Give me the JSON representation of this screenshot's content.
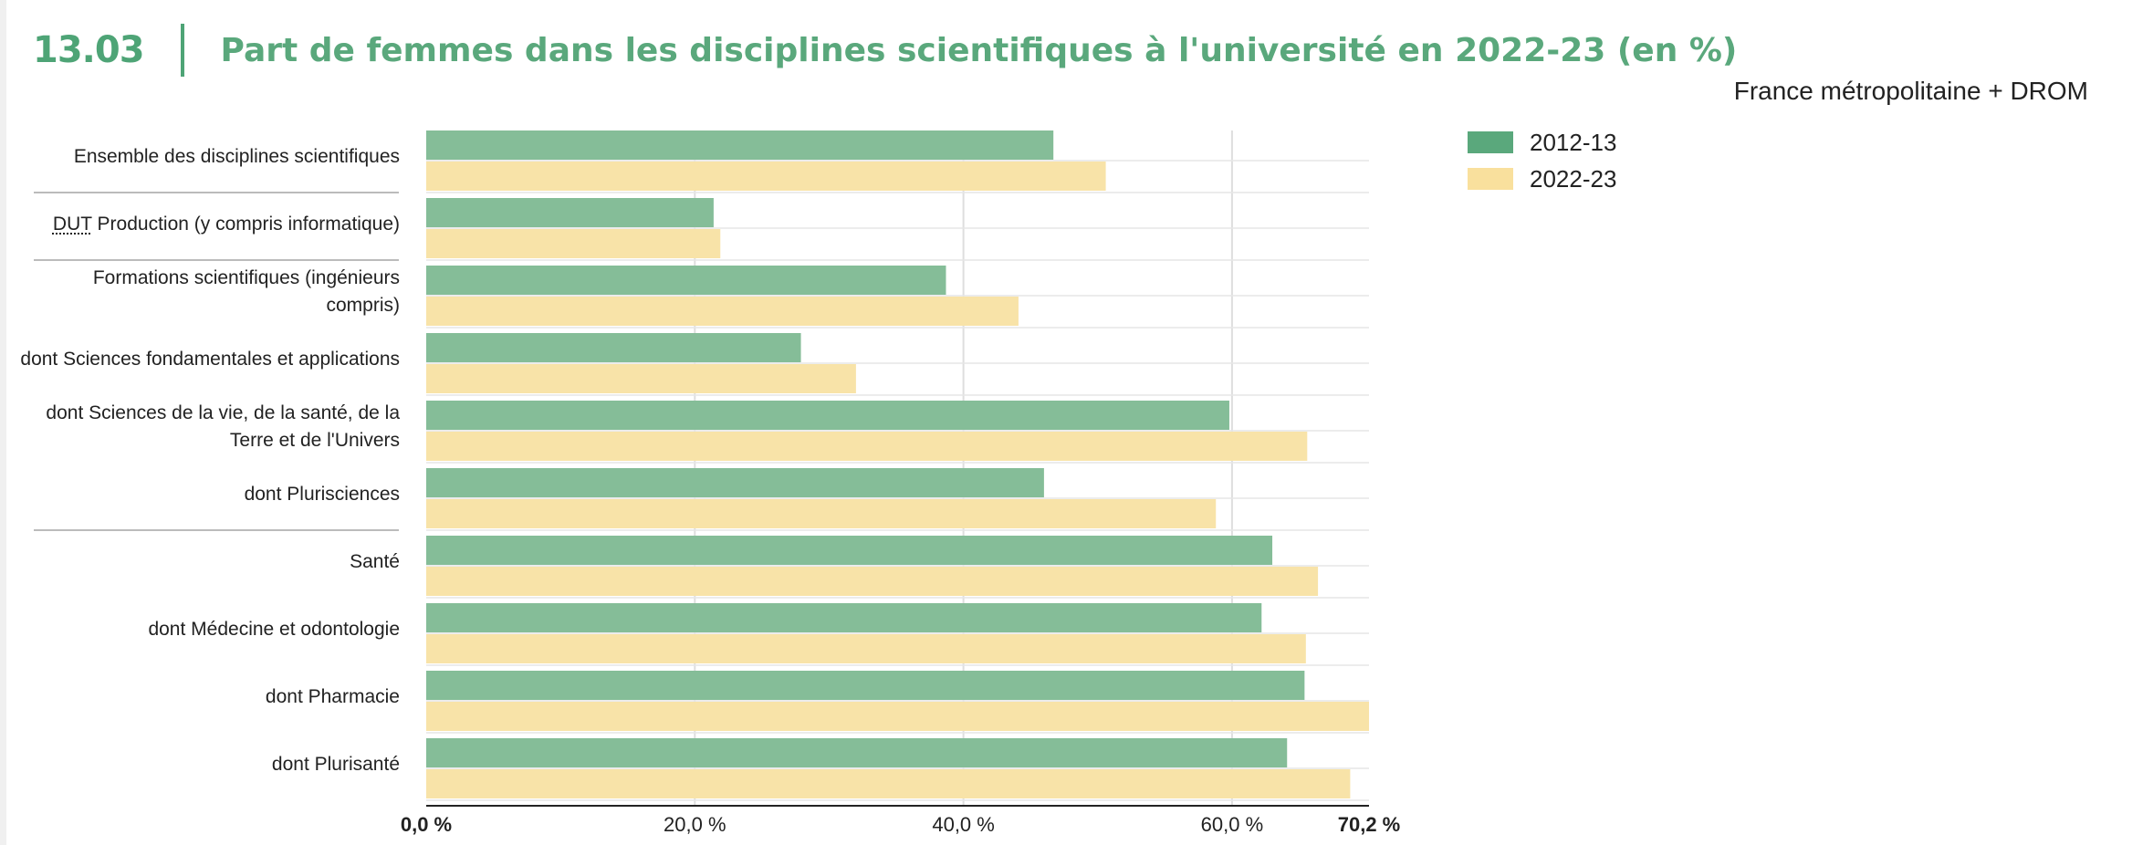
{
  "header": {
    "figure_number": "13.03",
    "title": "Part de femmes dans les disciplines scientifiques à l'université en 2022-23 (en %)",
    "scope": "France métropolitaine + DROM"
  },
  "colors": {
    "accent": "#4ea476",
    "series_2012": "#85bd98",
    "series_2022": "#f8e3a8",
    "legend_2012": "#5aa87c",
    "legend_2022": "#f9e09d"
  },
  "chart_data": {
    "type": "bar",
    "orientation": "horizontal",
    "categories": [
      "Ensemble des disciplines scientifiques",
      "DUT Production (y compris informatique)",
      "Formations scientifiques (ingénieurs compris)",
      "dont Sciences fondamentales et applications",
      "dont Sciences de la vie, de la santé, de la Terre et de l'Univers",
      "dont Plurisciences",
      "Santé",
      "dont Médecine et odontologie",
      "dont Pharmacie",
      "dont Plurisanté"
    ],
    "category_label_parts": [
      {
        "abbr": "",
        "text": "Ensemble des disciplines scientifiques"
      },
      {
        "abbr": "DUT",
        "text": " Production (y compris informatique)"
      },
      {
        "abbr": "",
        "text": "Formations scientifiques (ingénieurs compris)"
      },
      {
        "abbr": "",
        "text": "dont Sciences fondamentales et applications"
      },
      {
        "abbr": "",
        "text": "dont Sciences de la vie, de la santé, de la Terre et de l'Univers"
      },
      {
        "abbr": "",
        "text": "dont Plurisciences"
      },
      {
        "abbr": "",
        "text": "Santé"
      },
      {
        "abbr": "",
        "text": "dont Médecine et odontologie"
      },
      {
        "abbr": "",
        "text": "dont Pharmacie"
      },
      {
        "abbr": "",
        "text": "dont Plurisanté"
      }
    ],
    "series": [
      {
        "name": "2012-13",
        "values": [
          46.7,
          21.4,
          38.7,
          27.9,
          59.8,
          46.0,
          63.0,
          62.2,
          65.4,
          64.1
        ]
      },
      {
        "name": "2022-23",
        "values": [
          50.6,
          21.9,
          44.1,
          32.0,
          65.6,
          58.8,
          66.4,
          65.5,
          70.2,
          68.8
        ]
      }
    ],
    "x_ticks": [
      "0,0 %",
      "20,0 %",
      "40,0 %",
      "60,0 %",
      "70,2 %"
    ],
    "x_tick_values": [
      0,
      20,
      40,
      60,
      70.2
    ],
    "xlim": [
      0,
      70.2
    ],
    "grid": true,
    "legend_position": "top-right",
    "group_separators_after": [
      0,
      1,
      5
    ]
  }
}
